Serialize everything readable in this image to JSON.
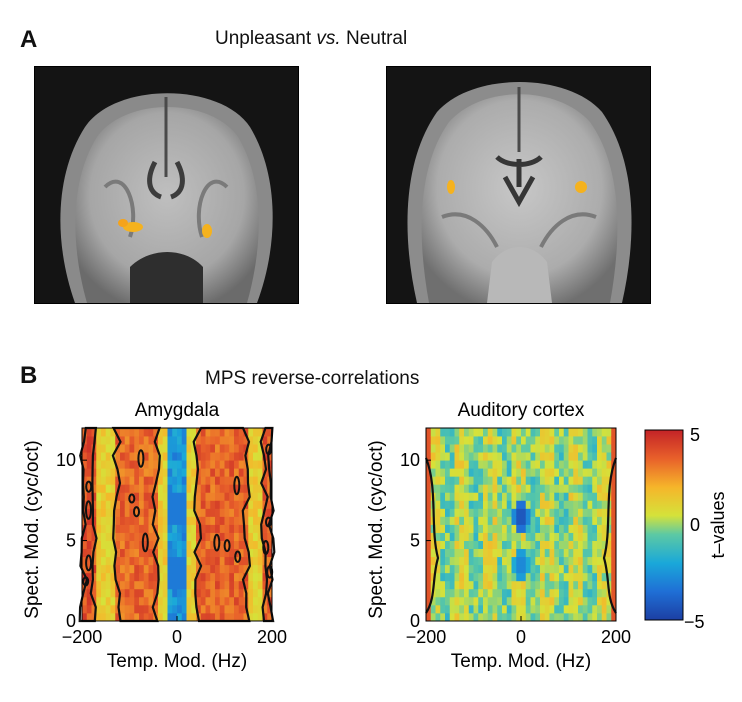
{
  "panel_a": {
    "letter": "A",
    "title_pre": "Unpleasant ",
    "title_italic": "vs.",
    "title_post": " Neutral"
  },
  "panel_b": {
    "letter": "B",
    "title": "MPS reverse-correlations"
  },
  "colors": {
    "activation": "#f5b21e",
    "contour": "#111111"
  },
  "chart_data": [
    {
      "type": "heatmap",
      "title": "Amygdala",
      "xlabel": "Temp. Mod. (Hz)",
      "ylabel": "Spect. Mod. (cyc/oct)",
      "xlim": [
        -200,
        200
      ],
      "ylim": [
        0,
        12
      ],
      "xticks": [
        "−200",
        "0",
        "200"
      ],
      "yticks": [
        "0",
        "5",
        "10"
      ],
      "colormap": "jet",
      "clim": [
        -5,
        5
      ],
      "bands": [
        {
          "x": [
            -200,
            -170
          ],
          "t": 3.8
        },
        {
          "x": [
            -130,
            -40
          ],
          "t": 3.4
        },
        {
          "x": [
            -20,
            20
          ],
          "t": -2.5
        },
        {
          "x": [
            40,
            150
          ],
          "t": 3.5
        },
        {
          "x": [
            180,
            200
          ],
          "t": 3.6
        }
      ],
      "contours": true
    },
    {
      "type": "heatmap",
      "title": "Auditory cortex",
      "xlabel": "Temp. Mod. (Hz)",
      "ylabel": "Spect. Mod. (cyc/oct)",
      "xlim": [
        -200,
        200
      ],
      "ylim": [
        0,
        12
      ],
      "xticks": [
        "−200",
        "0",
        "200"
      ],
      "yticks": [
        "0",
        "5",
        "10"
      ],
      "colormap": "jet",
      "clim": [
        -5,
        5
      ],
      "blobs": [
        {
          "x": 0,
          "y": 6.5,
          "t": -4.5
        },
        {
          "x": 0,
          "y": 3.5,
          "t": -3.0
        }
      ],
      "contours": true
    }
  ],
  "colorbar": {
    "label": "t–values",
    "ticks": [
      "5",
      "0",
      "−5"
    ],
    "range": [
      -5,
      5
    ]
  }
}
